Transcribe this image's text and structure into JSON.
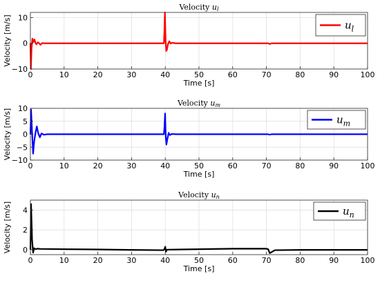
{
  "chart_data": [
    {
      "type": "line",
      "title": "Velocity u_l",
      "title_main": "Velocity ",
      "title_var": "u",
      "title_sub": "l",
      "xlabel": "Time [s]",
      "ylabel": "Velocity [m/s]",
      "xlim": [
        0,
        100
      ],
      "ylim": [
        -10,
        12
      ],
      "xticks": [
        0,
        10,
        20,
        30,
        40,
        50,
        60,
        70,
        80,
        90,
        100
      ],
      "yticks": [
        -10,
        0,
        10
      ],
      "grid": true,
      "legend_position": "top-right",
      "series": [
        {
          "name": "u_l",
          "legend_var": "u",
          "legend_sub": "l",
          "color": "#ff0000",
          "x": [
            0,
            0.15,
            0.35,
            0.6,
            0.9,
            1.2,
            1.5,
            1.8,
            2.2,
            2.6,
            3.0,
            3.5,
            4.0,
            5.0,
            39.6,
            39.75,
            39.9,
            40.1,
            40.3,
            40.5,
            40.8,
            41.2,
            41.6,
            42.0,
            43.0,
            70.5,
            71.0,
            71.5,
            100
          ],
          "y": [
            0,
            -10,
            -2,
            1.8,
            0.5,
            1.5,
            0.2,
            -0.4,
            0.4,
            0,
            -0.6,
            0.1,
            0,
            0,
            0,
            5,
            12,
            1,
            -3,
            -2.5,
            -0.3,
            0.8,
            -0.1,
            0.2,
            0,
            0,
            -0.3,
            0,
            0
          ]
        }
      ]
    },
    {
      "type": "line",
      "title": "Velocity u_m",
      "title_main": "Velocity ",
      "title_var": "u",
      "title_sub": "m",
      "xlabel": "Time [s]",
      "ylabel": "Velocity [m/s]",
      "xlim": [
        0,
        100
      ],
      "ylim": [
        -10,
        10
      ],
      "xticks": [
        0,
        10,
        20,
        30,
        40,
        50,
        60,
        70,
        80,
        90,
        100
      ],
      "yticks": [
        -10,
        -5,
        0,
        5,
        10
      ],
      "grid": true,
      "legend_position": "top-right",
      "series": [
        {
          "name": "u_m",
          "legend_var": "u",
          "legend_sub": "m",
          "color": "#0000ff",
          "x": [
            0,
            0.2,
            0.45,
            0.8,
            1.1,
            1.5,
            1.9,
            2.3,
            2.8,
            3.3,
            4.0,
            5.0,
            39.6,
            39.75,
            39.95,
            40.15,
            40.35,
            40.6,
            41.0,
            41.4,
            42.0,
            43.0,
            70.5,
            71.0,
            71.5,
            100
          ],
          "y": [
            0,
            9.5,
            2,
            -7.5,
            -3,
            0.5,
            3,
            0.5,
            -1.2,
            0.3,
            -0.2,
            0,
            0,
            2.5,
            8,
            -1,
            -4,
            -2,
            0.5,
            -0.3,
            0.1,
            0,
            0,
            -0.2,
            0,
            0
          ]
        }
      ]
    },
    {
      "type": "line",
      "title": "Velocity u_n",
      "title_main": "Velocity ",
      "title_var": "u",
      "title_sub": "n",
      "xlabel": "Time [s]",
      "ylabel": "Velocity [m/s]",
      "xlim": [
        0,
        100
      ],
      "ylim": [
        -0.5,
        5
      ],
      "xticks": [
        0,
        10,
        20,
        30,
        40,
        50,
        60,
        70,
        80,
        90,
        100
      ],
      "yticks": [
        0,
        2,
        4
      ],
      "grid": true,
      "legend_position": "top-right",
      "series": [
        {
          "name": "u_n",
          "legend_var": "u",
          "legend_sub": "n",
          "color": "#000000",
          "x": [
            0,
            0.2,
            0.5,
            0.8,
            1.1,
            1.5,
            2.0,
            3.0,
            10,
            20,
            30,
            39.5,
            39.8,
            40.0,
            40.2,
            40.5,
            50,
            60,
            70,
            70.5,
            71.0,
            71.5,
            72.5,
            80,
            100
          ],
          "y": [
            0,
            4.6,
            1.0,
            -0.3,
            0.15,
            0.05,
            0.1,
            0.08,
            0.05,
            0.02,
            -0.02,
            -0.05,
            0.1,
            0.3,
            -0.2,
            0.0,
            0.05,
            0.1,
            0.1,
            0.05,
            -0.35,
            -0.25,
            -0.05,
            -0.02,
            -0.02
          ]
        }
      ]
    }
  ]
}
